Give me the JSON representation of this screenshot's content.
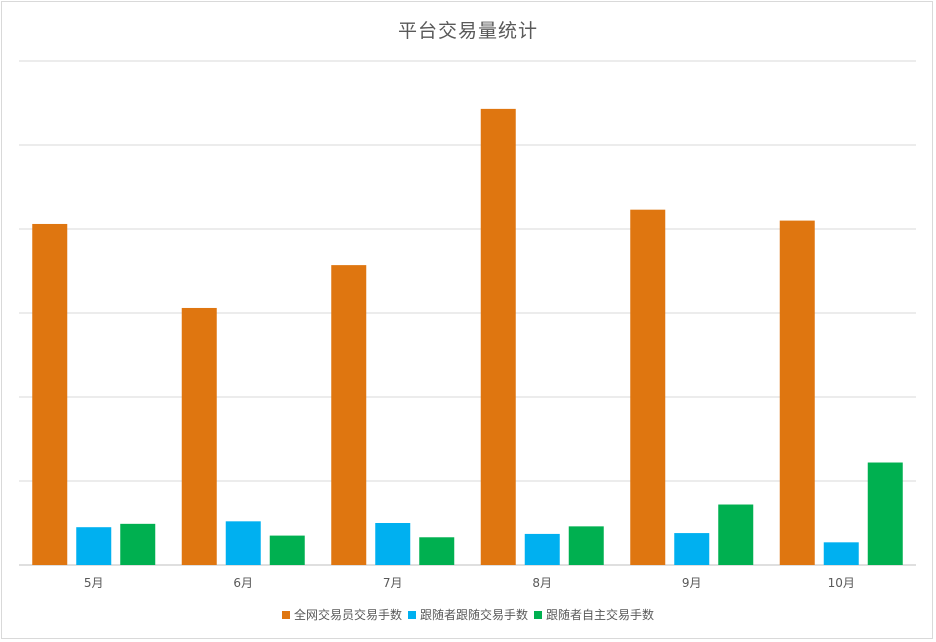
{
  "chart_data": {
    "type": "bar",
    "title": "平台交易量统计",
    "categories": [
      "5月",
      "6月",
      "7月",
      "8月",
      "9月",
      "10月"
    ],
    "series": [
      {
        "name": "全网交易员交易手数",
        "color": "#DF7610",
        "values": [
          4.06,
          3.06,
          3.57,
          5.43,
          4.23,
          4.1
        ]
      },
      {
        "name": "跟随者跟随交易手数",
        "color": "#00B0F0",
        "values": [
          0.45,
          0.52,
          0.5,
          0.37,
          0.38,
          0.27
        ]
      },
      {
        "name": "跟随者自主交易手数",
        "color": "#00B050",
        "values": [
          0.49,
          0.35,
          0.33,
          0.46,
          0.72,
          1.22
        ]
      }
    ],
    "ylim": [
      0,
      6
    ],
    "y_gridlines": 6,
    "y_tick_labels_visible": false,
    "grid": true,
    "legend": "bottom"
  }
}
